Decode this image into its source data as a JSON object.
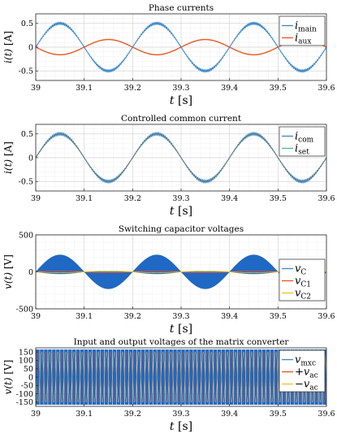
{
  "figure": {
    "panels": [
      {
        "id": "phase",
        "title": "Phase currents",
        "ylabel_var": "i(t)",
        "ylabel_unit": "[A]",
        "xlabel_var": "t",
        "xlabel_unit": "[s]",
        "yticks": [
          "-0.5",
          "0",
          "0.5"
        ],
        "legend": [
          {
            "main": "i",
            "sub": "main",
            "color": "#3a87c8"
          },
          {
            "main": "i",
            "sub": "aux",
            "color": "#e8541c"
          }
        ]
      },
      {
        "id": "common",
        "title": "Controlled common current",
        "ylabel_var": "i(t)",
        "ylabel_unit": "[A]",
        "xlabel_var": "t",
        "xlabel_unit": "[s]",
        "yticks": [
          "-0.5",
          "0",
          "0.5"
        ],
        "legend": [
          {
            "main": "i",
            "sub": "com",
            "color": "#3a87c8"
          },
          {
            "main": "i",
            "sub": "set",
            "color": "#56b68a"
          }
        ]
      },
      {
        "id": "capacitor",
        "title": "Switching capacitor voltages",
        "ylabel_var": "v(t)",
        "ylabel_unit": "[V]",
        "xlabel_var": "t",
        "xlabel_unit": "[s]",
        "yticks": [
          "-500",
          "0",
          "500"
        ],
        "legend": [
          {
            "main": "v",
            "sub": "C",
            "color": "#3a87c8"
          },
          {
            "main": "v",
            "sub": "C1",
            "color": "#e8541c"
          },
          {
            "main": "v",
            "sub": "C2",
            "color": "#f0c020"
          }
        ]
      },
      {
        "id": "matrix",
        "title": "Input and output voltages of the matrix converter",
        "ylabel_var": "v(t)",
        "ylabel_unit": "[V]",
        "xlabel_var": "t",
        "xlabel_unit": "[s]",
        "yticks": [
          "-150",
          "-100",
          "-50",
          "0",
          "50",
          "100",
          "150"
        ],
        "legend": [
          {
            "main": "v",
            "sub": "mxc",
            "prefix": "",
            "color": "#3a87c8"
          },
          {
            "main": "v",
            "sub": "ac",
            "prefix": "+",
            "color": "#e8541c"
          },
          {
            "main": "v",
            "sub": "ac",
            "prefix": "−",
            "color": "#f0c020"
          }
        ]
      }
    ],
    "xticks": [
      "39",
      "39.1",
      "39.2",
      "39.3",
      "39.4",
      "39.5",
      "39.6"
    ]
  },
  "chart_data": [
    {
      "type": "line",
      "title": "Phase currents",
      "xlabel": "t [s]",
      "ylabel": "i(t) [A]",
      "xlim": [
        39,
        39.6
      ],
      "ylim": [
        -0.7,
        0.7
      ],
      "grid": true,
      "legend_position": "top-right",
      "series": [
        {
          "name": "i_main",
          "color": "#3a87c8",
          "amplitude": 0.5,
          "frequency_hz": 5,
          "phase_deg": 0,
          "offset": 0.0
        },
        {
          "name": "i_aux",
          "color": "#e8541c",
          "amplitude": 0.16,
          "frequency_hz": 5,
          "phase_deg": 180,
          "offset": 0.0
        }
      ]
    },
    {
      "type": "line",
      "title": "Controlled common current",
      "xlabel": "t [s]",
      "ylabel": "i(t) [A]",
      "xlim": [
        39,
        39.6
      ],
      "ylim": [
        -0.7,
        0.7
      ],
      "grid": true,
      "legend_position": "top-right",
      "series": [
        {
          "name": "i_com",
          "color": "#3a87c8",
          "amplitude": 0.5,
          "frequency_hz": 5,
          "phase_deg": 0
        },
        {
          "name": "i_set",
          "color": "#56b68a",
          "amplitude": 0.5,
          "frequency_hz": 5,
          "phase_deg": 0
        }
      ]
    },
    {
      "type": "area",
      "title": "Switching capacitor voltages",
      "xlabel": "t [s]",
      "ylabel": "v(t) [V]",
      "xlim": [
        39,
        39.6
      ],
      "ylim": [
        -500,
        500
      ],
      "grid": true,
      "legend_position": "right",
      "series": [
        {
          "name": "v_C",
          "color": "#3a87c8",
          "max_envelope": 230,
          "min_envelope": -230,
          "frequency_hz": 5
        },
        {
          "name": "v_C1",
          "color": "#e8541c"
        },
        {
          "name": "v_C2",
          "color": "#f0c020"
        }
      ]
    },
    {
      "type": "line",
      "title": "Input and output voltages of the matrix converter",
      "xlabel": "t [s]",
      "ylabel": "v(t) [V]",
      "xlim": [
        39,
        39.6
      ],
      "ylim": [
        -175,
        175
      ],
      "grid": true,
      "legend_position": "top-right",
      "series": [
        {
          "name": "v_mxc",
          "color": "#3a87c8",
          "amplitude": 160,
          "frequency_hz": 60
        },
        {
          "name": "+v_ac",
          "color": "#e8541c",
          "amplitude": 155,
          "frequency_hz": 60
        },
        {
          "name": "-v_ac",
          "color": "#f0c020",
          "amplitude": 155,
          "frequency_hz": 60
        }
      ]
    }
  ]
}
